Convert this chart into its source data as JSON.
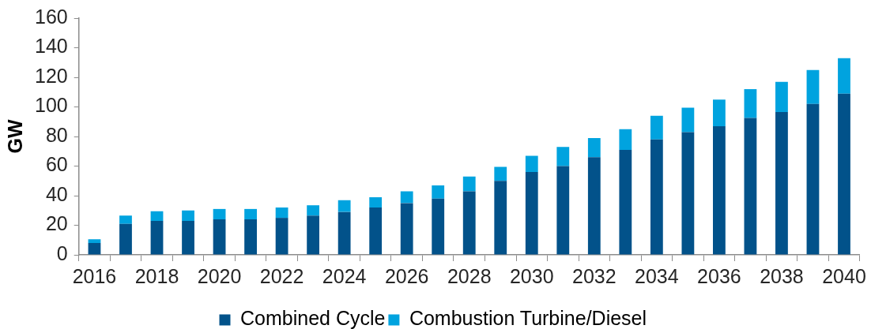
{
  "chart_data": {
    "type": "bar",
    "stacked": true,
    "ylabel": "GW",
    "categories": [
      "2016",
      null,
      "2018",
      null,
      "2020",
      null,
      "2022",
      null,
      "2024",
      null,
      "2026",
      null,
      "2028",
      null,
      "2030",
      null,
      "2032",
      null,
      "2034",
      null,
      "2036",
      null,
      "2038",
      null,
      "2040"
    ],
    "series": [
      {
        "name": "Combined Cycle",
        "color": "#02528a",
        "values": [
          8,
          21,
          23,
          23,
          24,
          24,
          25,
          26.5,
          29,
          32,
          35,
          38,
          43,
          50,
          56,
          60,
          66,
          71,
          78,
          83,
          87,
          92.5,
          96.5,
          102,
          109
        ]
      },
      {
        "name": "Combustion Turbine/Diesel",
        "color": "#00a3df",
        "values": [
          2.5,
          5.5,
          6.5,
          7,
          7,
          7,
          7,
          7,
          8,
          7,
          8,
          9,
          10,
          9.5,
          11,
          13,
          13,
          14,
          16,
          16.5,
          18,
          19.5,
          20.5,
          23,
          24
        ]
      }
    ],
    "ylim": [
      0,
      160
    ],
    "yticks": [
      0,
      20,
      40,
      60,
      80,
      100,
      120,
      140,
      160
    ],
    "grid": false,
    "legend": "bottom"
  }
}
